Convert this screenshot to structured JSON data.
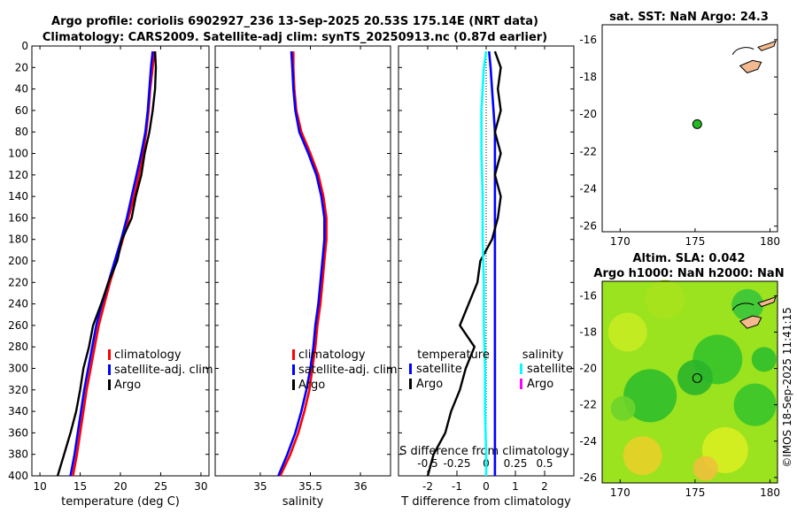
{
  "header": {
    "line1": "Argo profile: coriolis 6902927_236 13-Sep-2025 20.53S 175.14E (NRT data)",
    "line2": "Climatology: CARS2009. Satellite-adj clim: synTS_20250913.nc (0.87d earlier)"
  },
  "colors": {
    "climatology": "#ff0000",
    "satellite_adj": "#0000ff",
    "argo": "#000000",
    "salinity_satellite": "#00ffff",
    "salinity_argo": "#ff00ff",
    "land": "#f5b98f",
    "sla_base": "#44cc22"
  },
  "chart_data": [
    {
      "id": "temperature",
      "type": "line",
      "xlabel": "temperature (deg C)",
      "ylabel": "",
      "xlim": [
        9,
        31
      ],
      "ylim": [
        400,
        0
      ],
      "xticks": [
        "10",
        "15",
        "20",
        "25",
        "30"
      ],
      "xtick_values": [
        10,
        15,
        20,
        25,
        30
      ],
      "yticks": [
        "0",
        "20",
        "40",
        "60",
        "80",
        "100",
        "120",
        "140",
        "160",
        "180",
        "200",
        "220",
        "240",
        "260",
        "280",
        "300",
        "320",
        "340",
        "360",
        "380",
        "400"
      ],
      "legend": [
        "climatology",
        "satellite-adj. clim",
        "Argo"
      ],
      "series": [
        {
          "name": "climatology",
          "color": "#ff0000",
          "depth": [
            5,
            20,
            40,
            60,
            80,
            100,
            120,
            140,
            160,
            180,
            200,
            220,
            240,
            260,
            280,
            300,
            320,
            340,
            360,
            380,
            400
          ],
          "values": [
            24.2,
            24.0,
            23.7,
            23.5,
            23.2,
            22.8,
            22.3,
            21.7,
            21.0,
            20.3,
            19.5,
            18.7,
            18.0,
            17.3,
            16.8,
            16.3,
            15.8,
            15.4,
            15.0,
            14.6,
            14.1
          ]
        },
        {
          "name": "satellite-adj. clim",
          "color": "#0000ff",
          "depth": [
            5,
            20,
            40,
            60,
            80,
            100,
            120,
            140,
            160,
            180,
            200,
            220,
            240,
            260,
            280,
            300,
            320,
            340,
            360,
            380,
            400
          ],
          "values": [
            24.0,
            23.8,
            23.6,
            23.4,
            23.1,
            22.6,
            22.0,
            21.4,
            20.8,
            20.1,
            19.3,
            18.5,
            17.7,
            17.0,
            16.5,
            16.0,
            15.5,
            15.1,
            14.7,
            14.3,
            13.8
          ]
        },
        {
          "name": "Argo",
          "color": "#000000",
          "depth": [
            5,
            20,
            40,
            60,
            80,
            100,
            120,
            140,
            160,
            180,
            200,
            220,
            240,
            260,
            280,
            300,
            320,
            340,
            360,
            380,
            400
          ],
          "values": [
            24.3,
            24.4,
            24.3,
            24.0,
            23.6,
            23.0,
            22.6,
            21.9,
            21.4,
            20.2,
            19.6,
            18.5,
            17.6,
            16.6,
            16.1,
            15.4,
            15.0,
            14.5,
            13.8,
            13.0,
            12.2
          ]
        }
      ]
    },
    {
      "id": "salinity",
      "type": "line",
      "xlabel": "salinity",
      "ylabel": "",
      "xlim": [
        34.55,
        36.3
      ],
      "ylim": [
        400,
        0
      ],
      "xticks": [
        "35",
        "35.5",
        "36"
      ],
      "xtick_values": [
        35,
        35.5,
        36
      ],
      "legend": [
        "climatology",
        "satellite-adj. clim",
        "Argo"
      ],
      "series": [
        {
          "name": "climatology",
          "color": "#ff0000",
          "depth": [
            5,
            20,
            40,
            60,
            80,
            100,
            120,
            140,
            160,
            180,
            200,
            220,
            240,
            260,
            280,
            300,
            320,
            340,
            360,
            380,
            400
          ],
          "values": [
            35.33,
            35.33,
            35.34,
            35.36,
            35.41,
            35.5,
            35.58,
            35.63,
            35.66,
            35.66,
            35.64,
            35.62,
            35.6,
            35.57,
            35.55,
            35.52,
            35.49,
            35.44,
            35.38,
            35.3,
            35.2
          ]
        },
        {
          "name": "satellite-adj. clim",
          "color": "#0000ff",
          "depth": [
            5,
            20,
            40,
            60,
            80,
            100,
            120,
            140,
            160,
            180,
            200,
            220,
            240,
            260,
            280,
            300,
            320,
            340,
            360,
            380,
            400
          ],
          "values": [
            35.31,
            35.32,
            35.33,
            35.35,
            35.39,
            35.48,
            35.56,
            35.61,
            35.64,
            35.64,
            35.62,
            35.6,
            35.58,
            35.55,
            35.53,
            35.5,
            35.46,
            35.41,
            35.35,
            35.27,
            35.18
          ]
        },
        {
          "name": "Argo",
          "color": "#000000",
          "depth": [],
          "values": []
        }
      ]
    },
    {
      "id": "difference",
      "type": "line",
      "xlabel": "T difference from climatology",
      "top_xlabel": "S difference from climatology",
      "xlim": [
        -3,
        3
      ],
      "ylim": [
        400,
        0
      ],
      "xticks": [
        "-2",
        "-1",
        "0",
        "1",
        "2"
      ],
      "xtick_values": [
        -2,
        -1,
        0,
        1,
        2
      ],
      "top_xticks": [
        "-0.5",
        "-0.25",
        "0",
        "0.25",
        "0.5"
      ],
      "legend_temperature_title": "temperature",
      "legend_salinity_title": "salinity",
      "legend_temperature": [
        "satellite",
        "Argo"
      ],
      "legend_salinity": [
        "satellite",
        "Argo"
      ],
      "series": [
        {
          "name": "T satellite",
          "color": "#0000ff",
          "depth": [
            5,
            20,
            40,
            60,
            80,
            100,
            140,
            180,
            220,
            260,
            300,
            340,
            380,
            400
          ],
          "values": [
            0.1,
            0.15,
            0.2,
            0.25,
            0.3,
            0.3,
            0.3,
            0.3,
            0.3,
            0.3,
            0.3,
            0.3,
            0.3,
            0.3
          ]
        },
        {
          "name": "T Argo",
          "color": "#000000",
          "depth": [
            5,
            20,
            40,
            60,
            80,
            100,
            120,
            140,
            160,
            180,
            200,
            220,
            240,
            260,
            280,
            300,
            320,
            340,
            360,
            380,
            400
          ],
          "values": [
            0.3,
            0.5,
            0.4,
            0.5,
            0.3,
            0.5,
            0.3,
            0.5,
            0.4,
            0.2,
            -0.2,
            -0.3,
            -0.6,
            -0.9,
            -0.4,
            -0.7,
            -0.9,
            -1.2,
            -1.4,
            -1.8,
            -2.0
          ]
        },
        {
          "name": "S satellite",
          "color": "#00ffff",
          "depth": [
            5,
            20,
            40,
            60,
            80,
            100,
            140,
            180,
            220,
            260,
            300,
            340,
            380,
            400
          ],
          "values": [
            0.0,
            -0.02,
            -0.03,
            -0.04,
            -0.04,
            -0.04,
            -0.03,
            -0.03,
            -0.02,
            -0.02,
            -0.01,
            -0.01,
            0.0,
            0.0
          ]
        }
      ]
    }
  ],
  "sst_map": {
    "title": "sat. SST: NaN Argo: 24.3",
    "xticks": [
      "170",
      "175",
      "180"
    ],
    "yticks": [
      "-16",
      "-18",
      "-20",
      "-22",
      "-24",
      "-26"
    ],
    "argo_lon": 175.14,
    "argo_lat": -20.53
  },
  "sla_map": {
    "title1": "Altim. SLA: 0.042",
    "title2": "Argo h1000: NaN h2000: NaN",
    "xticks": [
      "170",
      "175",
      "180"
    ],
    "yticks": [
      "-16",
      "-18",
      "-20",
      "-22",
      "-24",
      "-26"
    ]
  },
  "footer": {
    "credit": "©IMOS 18-Sep-2025 11:41:15"
  }
}
